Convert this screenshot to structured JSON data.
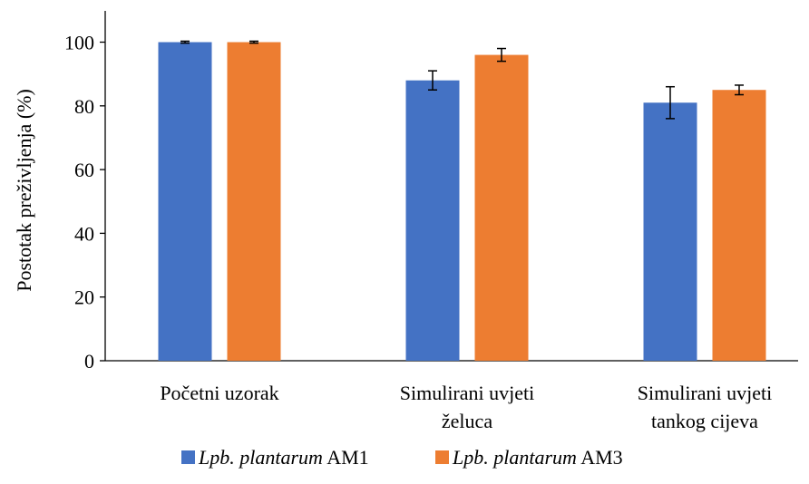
{
  "chart_data": {
    "type": "bar",
    "categories": [
      [
        "Početni uzorak"
      ],
      [
        "Simulirani uvjeti",
        "želuca"
      ],
      [
        "Simulirani uvjeti",
        "tankog cijeva"
      ]
    ],
    "series": [
      {
        "name_italic": "Lpb. plantarum",
        "name_rest": " AM1",
        "color": "#4472C4",
        "values": [
          100,
          88,
          81
        ],
        "errors": [
          0.3,
          3,
          5
        ]
      },
      {
        "name_italic": "Lpb. plantarum",
        "name_rest": " AM3",
        "color": "#ED7D31",
        "values": [
          100,
          96,
          85
        ],
        "errors": [
          0.3,
          2,
          1.5
        ]
      }
    ],
    "ylabel": "Postotak preživljenja   (%)",
    "ylim": [
      0,
      110
    ],
    "yticks": [
      0,
      20,
      40,
      60,
      80,
      100
    ],
    "grid": false,
    "legend_position": "bottom"
  }
}
